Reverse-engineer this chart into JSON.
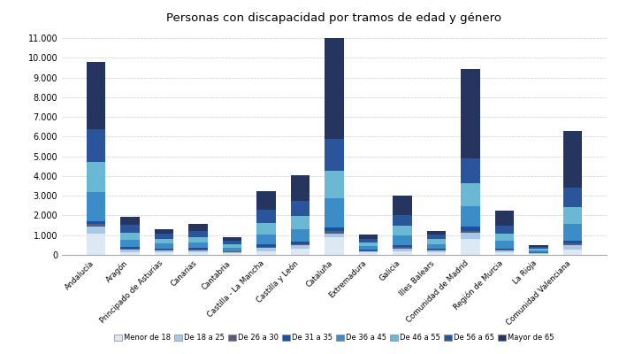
{
  "title": "Personas con discapacidad por tramos de edad y género",
  "categories": [
    "Andalucía",
    "Aragón",
    "Principado de Asturias",
    "Canarias",
    "Cantabria",
    "Castilla - La Mancha",
    "Castilla y León",
    "Cataluña",
    "Extremadura",
    "Galicia",
    "Illes Balears",
    "Comunidad de Madrid",
    "Región de Murcia",
    "La Rioja",
    "Comunidad Valenciana"
  ],
  "age_groups": [
    "Menor de 18",
    "De 18 a 25",
    "De 26 a 30",
    "De 31 a 35",
    "De 36 a 45",
    "De 46 a 55",
    "De 56 a 65",
    "Mayor de 65"
  ],
  "colors": [
    "#dce9f5",
    "#a8c8e8",
    "#5a5a7a",
    "#1a50a0",
    "#3b8cc7",
    "#6ab8d4",
    "#2a559a",
    "#263460"
  ],
  "data": {
    "Menor de 18": [
      1100,
      150,
      120,
      150,
      80,
      200,
      300,
      900,
      120,
      180,
      120,
      800,
      120,
      60,
      280
    ],
    "De 18 a 25": [
      350,
      120,
      90,
      80,
      50,
      150,
      180,
      200,
      70,
      140,
      90,
      320,
      90,
      40,
      200
    ],
    "De 26 a 30": [
      100,
      60,
      40,
      50,
      30,
      70,
      80,
      120,
      40,
      70,
      50,
      110,
      50,
      20,
      90
    ],
    "De 31 a 35": [
      150,
      80,
      60,
      60,
      40,
      100,
      130,
      170,
      50,
      100,
      60,
      200,
      70,
      30,
      130
    ],
    "De 36 a 45": [
      1500,
      350,
      280,
      280,
      180,
      500,
      600,
      1500,
      180,
      500,
      240,
      1050,
      380,
      90,
      850
    ],
    "De 46 a 55": [
      1500,
      380,
      240,
      280,
      180,
      580,
      680,
      1400,
      180,
      490,
      240,
      1150,
      380,
      90,
      870
    ],
    "De 56 a 65": [
      1700,
      380,
      250,
      320,
      180,
      670,
      760,
      1600,
      180,
      530,
      240,
      1250,
      390,
      90,
      980
    ],
    "Mayor de 65": [
      3400,
      430,
      210,
      330,
      160,
      980,
      1300,
      5100,
      230,
      990,
      190,
      4570,
      770,
      90,
      2900
    ]
  },
  "ylim": [
    0,
    11500
  ],
  "yticks": [
    0,
    1000,
    2000,
    3000,
    4000,
    5000,
    6000,
    7000,
    8000,
    9000,
    10000,
    11000
  ],
  "ytick_labels": [
    "0",
    "1.000",
    "2.000",
    "3.000",
    "4.000",
    "5.000",
    "6.000",
    "7.000",
    "8.000",
    "9.000",
    "10.000",
    "11.000"
  ],
  "background_color": "#ffffff",
  "grid_color": "#cccccc",
  "bar_width": 0.55
}
